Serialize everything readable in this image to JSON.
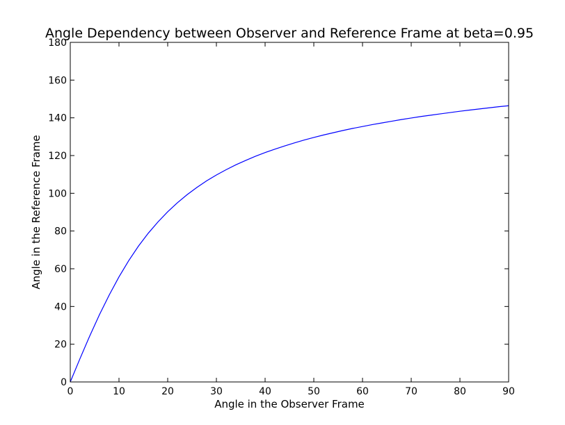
{
  "chart_data": {
    "type": "line",
    "title": "Angle Dependency between Observer and Reference Frame at beta=0.95",
    "xlabel": "Angle in the Observer Frame",
    "ylabel": "Angle in the Reference Frame",
    "xlim": [
      0,
      90
    ],
    "ylim": [
      0,
      180
    ],
    "xticks": [
      0,
      10,
      20,
      30,
      40,
      50,
      60,
      70,
      80,
      90
    ],
    "yticks": [
      0,
      20,
      40,
      60,
      80,
      100,
      120,
      140,
      160,
      180
    ],
    "grid": false,
    "series": [
      {
        "color": "#0000ff",
        "x": [
          0,
          2,
          4,
          6,
          8,
          10,
          12,
          14,
          16,
          18,
          20,
          22,
          24,
          26,
          28,
          30,
          32,
          34,
          36,
          38,
          40,
          42,
          44,
          46,
          48,
          50,
          52,
          54,
          56,
          58,
          60,
          62,
          64,
          66,
          68,
          70,
          72,
          74,
          76,
          78,
          80,
          82,
          84,
          86,
          88,
          90
        ],
        "y": [
          0,
          12.4,
          24.4,
          35.7,
          46.1,
          55.7,
          64.3,
          72.0,
          78.8,
          84.8,
          90.2,
          95.0,
          99.3,
          103.1,
          106.6,
          109.7,
          112.5,
          115.1,
          117.4,
          119.6,
          121.6,
          123.4,
          125.1,
          126.7,
          128.2,
          129.6,
          130.9,
          132.1,
          133.3,
          134.4,
          135.4,
          136.4,
          137.3,
          138.2,
          139.1,
          139.9,
          140.7,
          141.4,
          142.1,
          142.8,
          143.5,
          144.1,
          144.7,
          145.3,
          145.9,
          146.4
        ]
      }
    ]
  }
}
